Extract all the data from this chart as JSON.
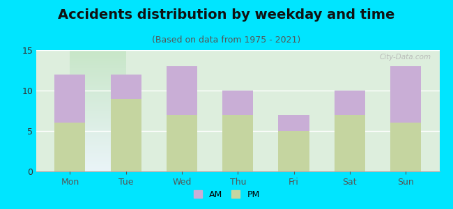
{
  "categories": [
    "Mon",
    "Tue",
    "Wed",
    "Thu",
    "Fri",
    "Sat",
    "Sun"
  ],
  "pm_values": [
    6,
    9,
    7,
    7,
    5,
    7,
    6
  ],
  "am_values": [
    6,
    3,
    6,
    3,
    2,
    3,
    7
  ],
  "am_color": "#c9aed6",
  "pm_color": "#c5d5a0",
  "title": "Accidents distribution by weekday and time",
  "subtitle": "(Based on data from 1975 - 2021)",
  "ylim": [
    0,
    15
  ],
  "yticks": [
    0,
    5,
    10,
    15
  ],
  "plot_bg_top": "#e8f4f8",
  "plot_bg_bottom": "#d8ecd8",
  "outer_background": "#00e5ff",
  "watermark": "City-Data.com",
  "title_fontsize": 14,
  "subtitle_fontsize": 9,
  "tick_fontsize": 9
}
